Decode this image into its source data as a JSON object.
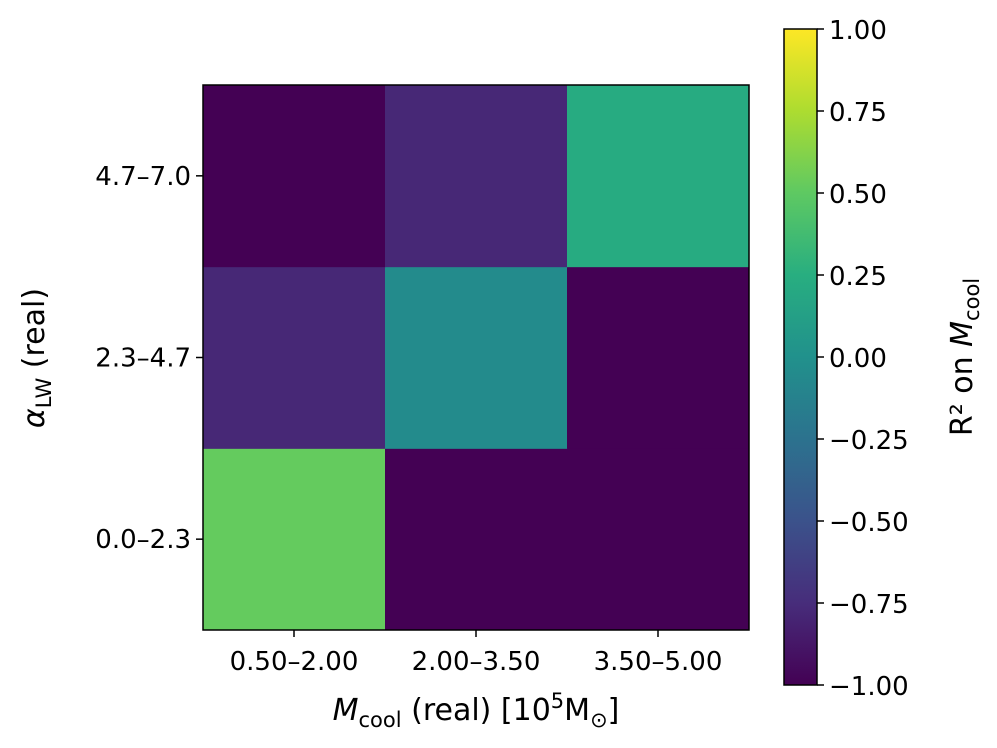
{
  "chart_data": {
    "type": "heatmap",
    "x_categories": [
      "0.50–2.00",
      "2.00–3.50",
      "3.50–5.00"
    ],
    "y_categories": [
      "0.0–2.3",
      "2.3–4.7",
      "4.7–7.0"
    ],
    "values": [
      [
        0.52,
        -1.0,
        -1.0
      ],
      [
        -0.78,
        -0.05,
        -1.0
      ],
      [
        -1.0,
        -0.78,
        0.22
      ]
    ],
    "xlabel": {
      "main": "M",
      "sub": "cool",
      "rest": " (real) [10",
      "sup": "5",
      "unit": "M",
      "unit_sub": "⊙",
      "close": "]"
    },
    "ylabel": {
      "main": "α",
      "sub": "LW",
      "rest": " (real)"
    },
    "colorbar": {
      "label": {
        "prefix": "R² on ",
        "main": "M",
        "sub": "cool"
      },
      "range": [
        -1.0,
        1.0
      ],
      "ticks": [
        -1.0,
        -0.75,
        -0.5,
        -0.25,
        0.0,
        0.25,
        0.5,
        0.75,
        1.0
      ],
      "tick_labels": [
        "−1.00",
        "−0.75",
        "−0.50",
        "−0.25",
        "0.00",
        "0.25",
        "0.50",
        "0.75",
        "1.00"
      ],
      "colormap": "viridis"
    },
    "grid": false
  }
}
